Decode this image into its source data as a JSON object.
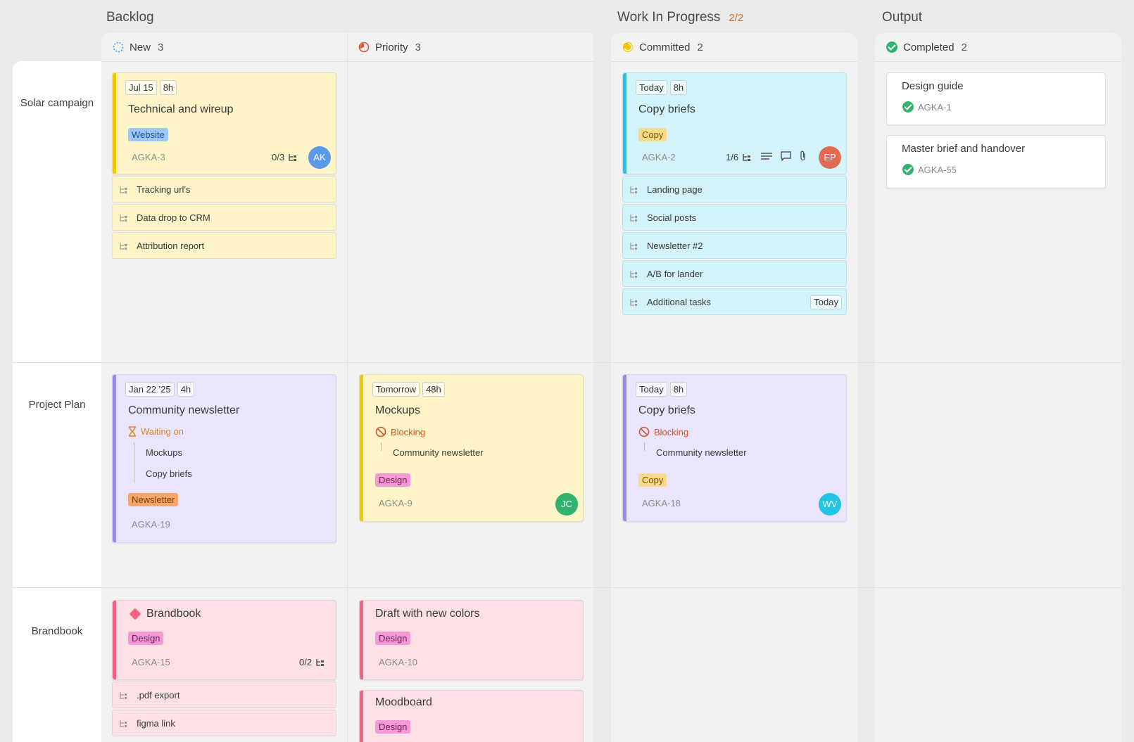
{
  "groups": {
    "backlog": "Backlog",
    "wip": "Work In Progress",
    "wip_limit": "2/2",
    "output": "Output"
  },
  "columns": {
    "new": {
      "label": "New",
      "count": "3"
    },
    "priority": {
      "label": "Priority",
      "count": "3"
    },
    "committed": {
      "label": "Committed",
      "count": "2"
    },
    "completed": {
      "label": "Completed",
      "count": "2"
    }
  },
  "lanes": {
    "solar": "Solar campaign",
    "plan": "Project Plan",
    "brand": "Brandbook"
  },
  "cards": {
    "tech": {
      "date": "Jul 15",
      "est": "8h",
      "title": "Technical and wireup",
      "tag": "Website",
      "id": "AGKA-3",
      "sub": "0/3",
      "avatar": "AK",
      "subtasks": [
        "Tracking url's",
        "Data drop to CRM",
        "Attribution report"
      ]
    },
    "copy1": {
      "date": "Today",
      "est": "8h",
      "title": "Copy briefs",
      "tag": "Copy",
      "id": "AGKA-2",
      "sub": "1/6",
      "avatar": "EP",
      "subtasks": [
        "Landing page",
        "Social posts",
        "Newsletter #2",
        "A/B for lander",
        "Additional tasks"
      ],
      "sub_due": "Today"
    },
    "news": {
      "date": "Jan 22 '25",
      "est": "4h",
      "title": "Community newsletter",
      "status": "Waiting on",
      "rel": [
        "Mockups",
        "Copy briefs"
      ],
      "tag": "Newsletter",
      "id": "AGKA-19"
    },
    "mock": {
      "date": "Tomorrow",
      "est": "48h",
      "title": "Mockups",
      "status": "Blocking",
      "rel": "Community newsletter",
      "tag": "Design",
      "id": "AGKA-9",
      "avatar": "JC"
    },
    "copy2": {
      "date": "Today",
      "est": "8h",
      "title": "Copy briefs",
      "status": "Blocking",
      "rel": "Community newsletter",
      "tag": "Copy",
      "id": "AGKA-18",
      "avatar": "WV"
    },
    "brand": {
      "title": "Brandbook",
      "tag": "Design",
      "id": "AGKA-15",
      "sub": "0/2",
      "subtasks": [
        ".pdf export",
        "figma link"
      ]
    },
    "draft": {
      "title": "Draft with new colors",
      "tag": "Design",
      "id": "AGKA-10"
    },
    "moodboard": {
      "title": "Moodboard",
      "tag": "Design"
    },
    "guide": {
      "title": "Design guide",
      "id": "AGKA-1"
    },
    "master": {
      "title": "Master brief and handover",
      "id": "AGKA-55"
    }
  },
  "colors": {
    "yellow": "#fdf4c8",
    "cyan": "#d3f3fa",
    "purple": "#eae5fc",
    "pink": "#fde0e6",
    "accent_yellow": "#f0c800",
    "accent_cyan": "#1fc4e6",
    "accent_purple": "#9b87f0",
    "accent_pink": "#f06480"
  }
}
